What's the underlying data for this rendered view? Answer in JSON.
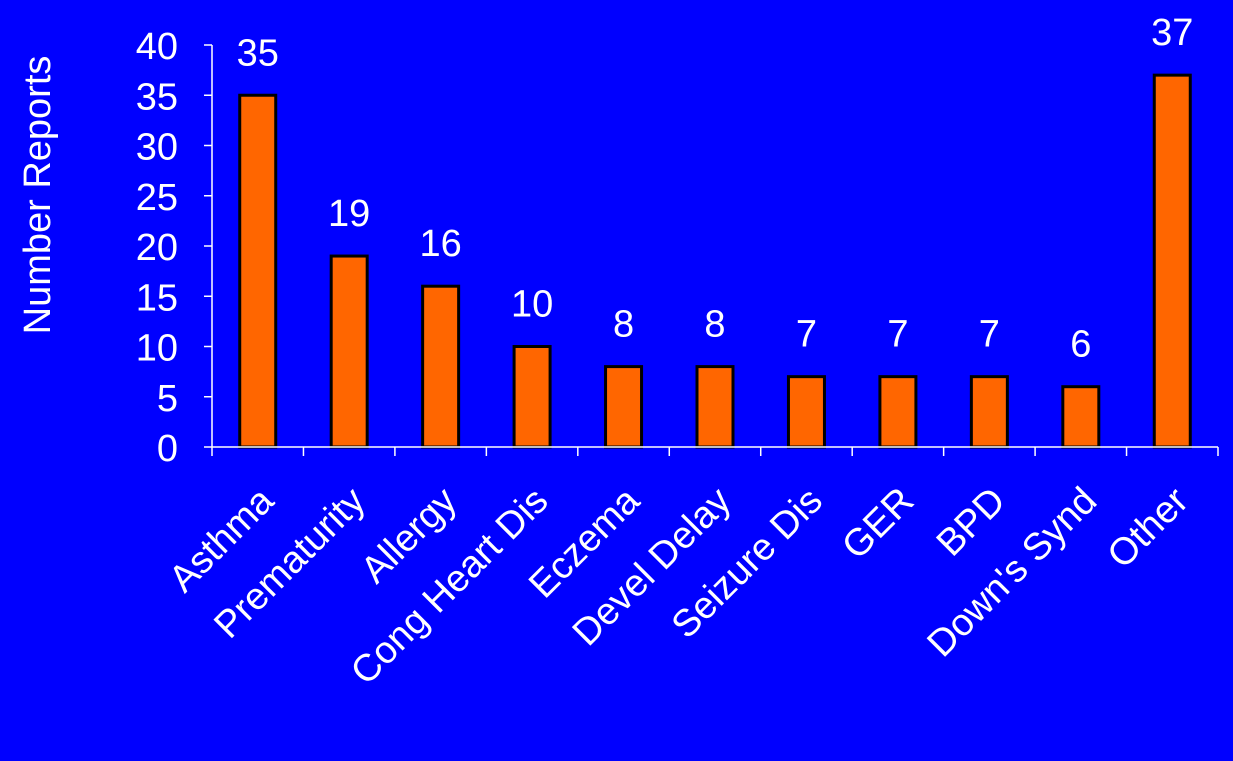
{
  "chart_data": {
    "type": "bar",
    "categories": [
      "Asthma",
      "Prematurity",
      "Allergy",
      "Cong Heart Dis",
      "Eczema",
      "Devel Delay",
      "Seizure Dis",
      "GER",
      "BPD",
      "Down's Synd",
      "Other"
    ],
    "values": [
      35,
      19,
      16,
      10,
      8,
      8,
      7,
      7,
      7,
      6,
      37
    ],
    "data_labels": [
      "35",
      "19",
      "16",
      "10",
      "8",
      "8",
      "7",
      "7",
      "7",
      "6",
      "37"
    ],
    "yticks": [
      "0",
      "5",
      "10",
      "15",
      "20",
      "25",
      "30",
      "35",
      "40"
    ],
    "title": "",
    "xlabel": "",
    "ylabel": "Number Reports",
    "ylim": [
      0,
      40
    ],
    "grid": false,
    "legend": "none",
    "colors": {
      "background": "#0000FF",
      "bar_fill": "#FF6600",
      "bar_stroke": "#000000",
      "text": "#FFFFFF",
      "axis": "#FFFFFF"
    }
  }
}
